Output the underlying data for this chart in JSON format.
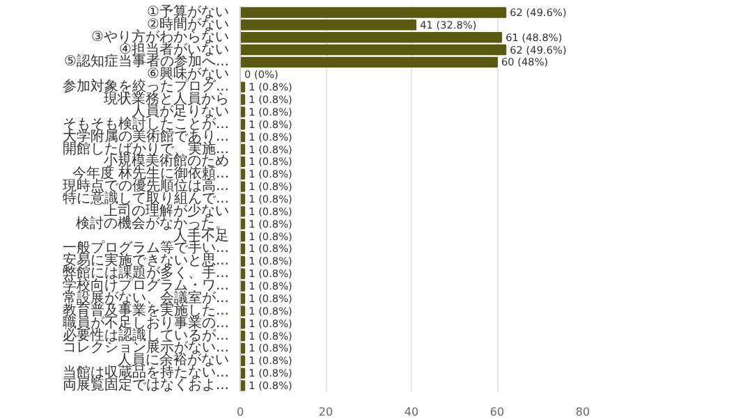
{
  "chart_data": {
    "type": "bar",
    "orientation": "horizontal",
    "categories": [
      "①予算がない",
      "②時間がない",
      "③やり方がわからない",
      "④担当者がいない",
      "⑤認知症当事者の参加へ...",
      "⑥興味がない",
      "参加対象を絞ったプログ...",
      "現状業務と人員から",
      "人員が足りない",
      "そもそも検討したことが...",
      "大学附属の美術館であり...",
      "開館したばかりで、実施...",
      "小規模美術館のため",
      "今年度 林先生に御依頼...",
      "現時点での優先順位は高...",
      "特に意識して取り組んで...",
      "上司の理解が少ない",
      "検討の機会がなかった。",
      "人手不足",
      "一般プログラム等で手い...",
      "安易に実施できないと思...",
      "弊館には課題が多く、手...",
      "学校向けプログラム・ワ...",
      "常設展がない、会議室が...",
      "教育普及事業を実施した...",
      "職員が不足しおり事業の...",
      "必要性は認識しているが...",
      "コレクション展示がない...",
      "人員に余裕がない",
      "当館は収蔵品を持たない...",
      "両展覧固定ではなくおよ..."
    ],
    "values": [
      62,
      41,
      61,
      62,
      60,
      0,
      1,
      1,
      1,
      1,
      1,
      1,
      1,
      1,
      1,
      1,
      1,
      1,
      1,
      1,
      1,
      1,
      1,
      1,
      1,
      1,
      1,
      1,
      1,
      1,
      1
    ],
    "value_labels": [
      "62 (49.6%)",
      "41 (32.8%)",
      "61 (48.8%)",
      "62 (49.6%)",
      "60 (48%)",
      "0 (0%)",
      "1 (0.8%)",
      "1 (0.8%)",
      "1 (0.8%)",
      "1 (0.8%)",
      "1 (0.8%)",
      "1 (0.8%)",
      "1 (0.8%)",
      "1 (0.8%)",
      "1 (0.8%)",
      "1 (0.8%)",
      "1 (0.8%)",
      "1 (0.8%)",
      "1 (0.8%)",
      "1 (0.8%)",
      "1 (0.8%)",
      "1 (0.8%)",
      "1 (0.8%)",
      "1 (0.8%)",
      "1 (0.8%)",
      "1 (0.8%)",
      "1 (0.8%)",
      "1 (0.8%)",
      "1 (0.8%)",
      "1 (0.8%)",
      "1 (0.8%)"
    ],
    "color": "#5a5a12",
    "xlim": [
      0,
      80
    ],
    "xticks": [
      0,
      20,
      40,
      60,
      80
    ],
    "grid": "x"
  }
}
